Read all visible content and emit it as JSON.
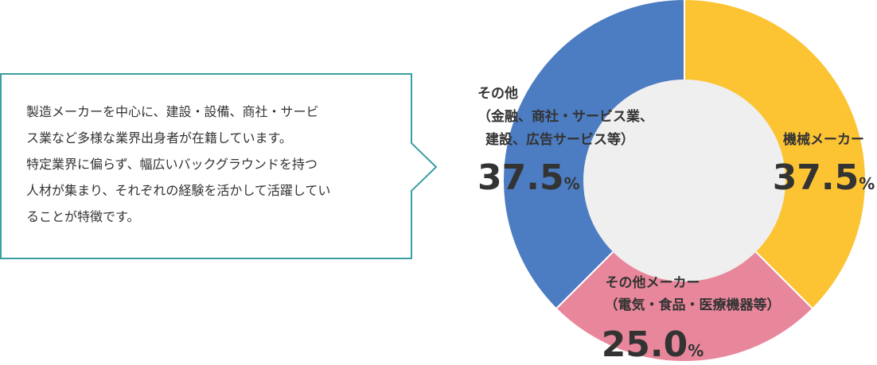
{
  "callout": {
    "lines": [
      "製造メーカーを中心に、建設・設備、商社・サービ",
      "ス業など多様な業界出身者が在籍しています。",
      "特定業界に偏らず、幅広いバックグラウンドを持つ",
      "人材が集まり、それぞれの経験を活かして活躍してい",
      "ることが特徴です。"
    ]
  },
  "chart_data": {
    "type": "pie",
    "donut": true,
    "categories": [
      "機械メーカー",
      "その他メーカー",
      "その他"
    ],
    "sublabels": [
      [],
      [
        "（電気・食品・医療機器等）"
      ],
      [
        "（金融、商社・サービス業、",
        "建設、広告サービス等）"
      ]
    ],
    "values": [
      37.5,
      25.0,
      37.5
    ],
    "value_labels": [
      "37.5",
      "25.0",
      "37.5"
    ],
    "unit": "%",
    "colors": [
      "#fcc433",
      "#e8879b",
      "#4c7cc2"
    ]
  }
}
